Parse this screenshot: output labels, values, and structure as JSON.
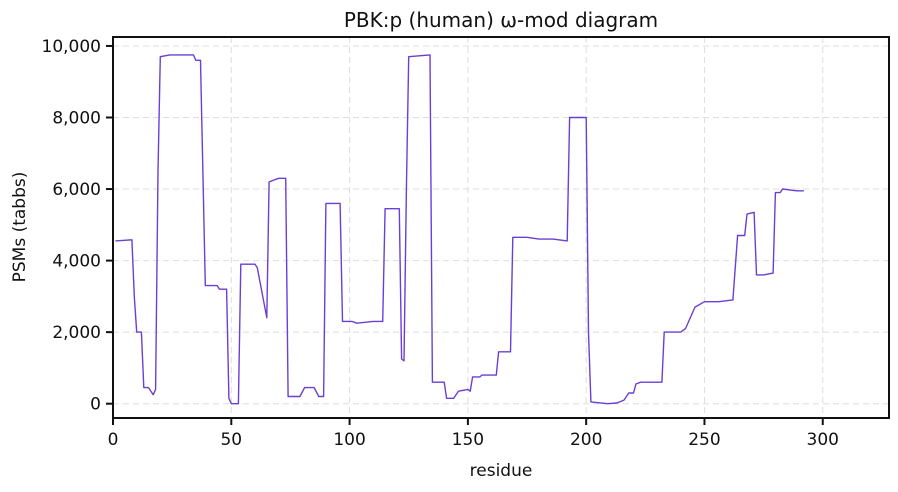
{
  "chart_data": {
    "type": "line",
    "title": "PBK:p (human) ω-mod diagram",
    "xlabel": "residue",
    "ylabel": "PSMs (tabbs)",
    "xlim": [
      0,
      328
    ],
    "ylim": [
      -400,
      10250
    ],
    "xticks": [
      0,
      50,
      100,
      150,
      200,
      250,
      300
    ],
    "xtick_labels": [
      "0",
      "50",
      "100",
      "150",
      "200",
      "250",
      "300"
    ],
    "yticks": [
      0,
      2000,
      4000,
      6000,
      8000,
      10000
    ],
    "ytick_labels": [
      "0",
      "2,000",
      "4,000",
      "6,000",
      "8,000",
      "10,000"
    ],
    "grid": true,
    "series": [
      {
        "color": "#6a3fd4",
        "points": [
          [
            1,
            4550
          ],
          [
            8,
            4580
          ],
          [
            9,
            3000
          ],
          [
            10,
            2000
          ],
          [
            12,
            2000
          ],
          [
            13,
            450
          ],
          [
            15,
            450
          ],
          [
            17,
            250
          ],
          [
            18,
            400
          ],
          [
            19,
            6500
          ],
          [
            20,
            9700
          ],
          [
            24,
            9750
          ],
          [
            34,
            9750
          ],
          [
            35,
            9600
          ],
          [
            37,
            9600
          ],
          [
            39,
            3300
          ],
          [
            44,
            3300
          ],
          [
            45,
            3200
          ],
          [
            48,
            3200
          ],
          [
            49,
            150
          ],
          [
            50,
            0
          ],
          [
            53,
            0
          ],
          [
            54,
            3900
          ],
          [
            60,
            3900
          ],
          [
            61,
            3800
          ],
          [
            65,
            2400
          ],
          [
            66,
            6200
          ],
          [
            70,
            6300
          ],
          [
            73,
            6300
          ],
          [
            74,
            200
          ],
          [
            79,
            200
          ],
          [
            81,
            450
          ],
          [
            85,
            450
          ],
          [
            87,
            200
          ],
          [
            89,
            200
          ],
          [
            90,
            5600
          ],
          [
            96,
            5600
          ],
          [
            97,
            2300
          ],
          [
            101,
            2300
          ],
          [
            103,
            2250
          ],
          [
            110,
            2300
          ],
          [
            114,
            2300
          ],
          [
            115,
            5450
          ],
          [
            121,
            5450
          ],
          [
            122,
            1250
          ],
          [
            123,
            1200
          ],
          [
            124,
            6000
          ],
          [
            125,
            9700
          ],
          [
            134,
            9750
          ],
          [
            135,
            600
          ],
          [
            140,
            600
          ],
          [
            141,
            150
          ],
          [
            144,
            150
          ],
          [
            146,
            350
          ],
          [
            150,
            400
          ],
          [
            151,
            350
          ],
          [
            152,
            750
          ],
          [
            155,
            750
          ],
          [
            156,
            800
          ],
          [
            162,
            800
          ],
          [
            163,
            1450
          ],
          [
            168,
            1450
          ],
          [
            169,
            4650
          ],
          [
            175,
            4650
          ],
          [
            180,
            4600
          ],
          [
            186,
            4600
          ],
          [
            192,
            4550
          ],
          [
            193,
            8000
          ],
          [
            200,
            8000
          ],
          [
            201,
            2000
          ],
          [
            202,
            50
          ],
          [
            209,
            0
          ],
          [
            213,
            20
          ],
          [
            216,
            100
          ],
          [
            218,
            300
          ],
          [
            220,
            300
          ],
          [
            221,
            550
          ],
          [
            223,
            600
          ],
          [
            227,
            600
          ],
          [
            232,
            600
          ],
          [
            233,
            2000
          ],
          [
            240,
            2000
          ],
          [
            242,
            2100
          ],
          [
            246,
            2700
          ],
          [
            250,
            2850
          ],
          [
            256,
            2850
          ],
          [
            262,
            2900
          ],
          [
            264,
            4700
          ],
          [
            267,
            4700
          ],
          [
            268,
            5300
          ],
          [
            271,
            5350
          ],
          [
            272,
            3600
          ],
          [
            275,
            3600
          ],
          [
            279,
            3650
          ],
          [
            280,
            5900
          ],
          [
            282,
            5900
          ],
          [
            283,
            6000
          ],
          [
            289,
            5950
          ],
          [
            292,
            5950
          ]
        ]
      }
    ]
  }
}
